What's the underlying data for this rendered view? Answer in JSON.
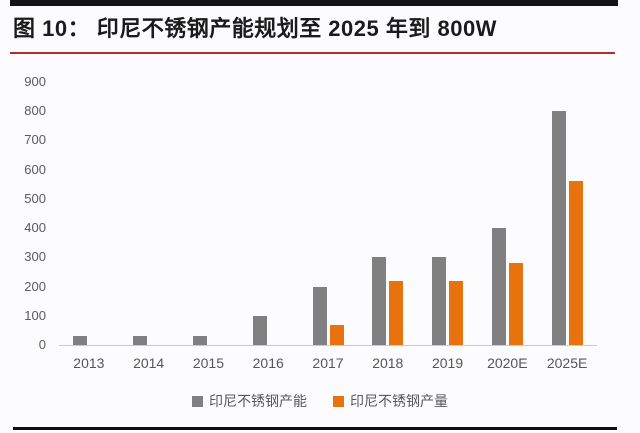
{
  "header": {
    "title": "图 10： 印尼不锈钢产能规划至 2025 年到 800W"
  },
  "chart_data": {
    "type": "bar",
    "title": "图 10： 印尼不锈钢产能规划至 2025 年到 800W",
    "categories": [
      "2013",
      "2014",
      "2015",
      "2016",
      "2017",
      "2018",
      "2019",
      "2020E",
      "2025E"
    ],
    "series": [
      {
        "name": "印尼不锈钢产能",
        "color": "#808080",
        "values": [
          30,
          30,
          30,
          100,
          200,
          300,
          300,
          400,
          800
        ]
      },
      {
        "name": "印尼不锈钢产量",
        "color": "#e8730e",
        "values": [
          0,
          0,
          0,
          0,
          70,
          220,
          220,
          280,
          560
        ]
      }
    ],
    "xlabel": "",
    "ylabel": "",
    "ylim": [
      0,
      900
    ],
    "ytick_step": 100,
    "grid": false,
    "legend_position": "bottom"
  },
  "colors": {
    "bar_gray": "#808080",
    "bar_orange": "#e8730e",
    "accent_red": "#b02e2e",
    "rule_black": "#141414",
    "axis_text": "#5a5a62",
    "background": "#fcfbfd"
  }
}
